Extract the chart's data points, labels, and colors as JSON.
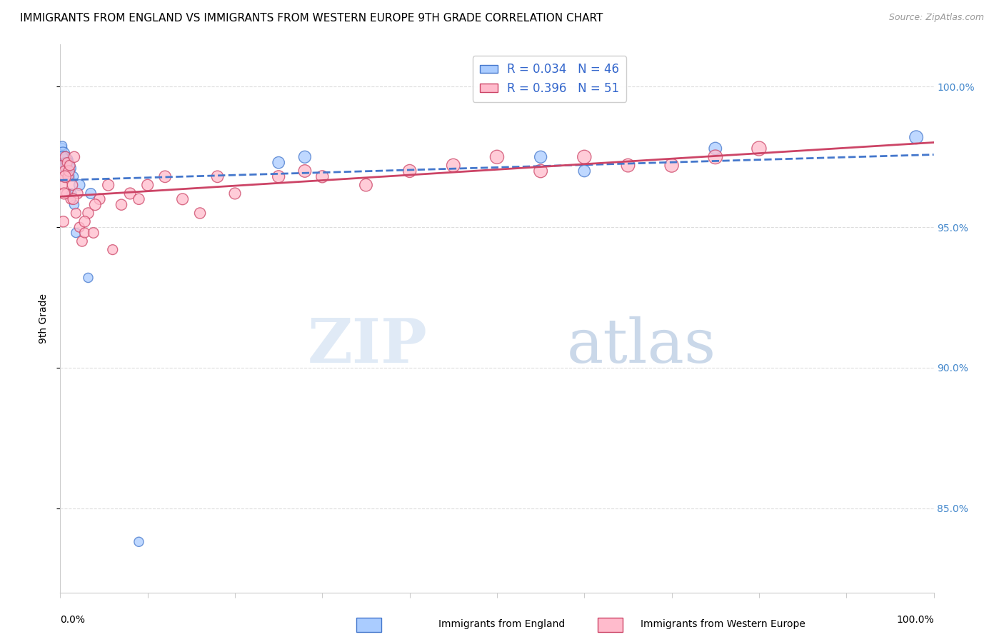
{
  "title": "IMMIGRANTS FROM ENGLAND VS IMMIGRANTS FROM WESTERN EUROPE 9TH GRADE CORRELATION CHART",
  "source": "Source: ZipAtlas.com",
  "ylabel": "9th Grade",
  "watermark_zip": "ZIP",
  "watermark_atlas": "atlas",
  "series1_label": "Immigrants from England",
  "series2_label": "Immigrants from Western Europe",
  "series1_R": 0.034,
  "series1_N": 46,
  "series2_R": 0.396,
  "series2_N": 51,
  "series1_color": "#aaccff",
  "series2_color": "#ffbbcc",
  "series1_edge_color": "#4477cc",
  "series2_edge_color": "#cc4466",
  "series1_line_color": "#4477cc",
  "series2_line_color": "#cc4466",
  "xmin": 0.0,
  "xmax": 100.0,
  "ymin": 82.0,
  "ymax": 101.5,
  "yticks": [
    85.0,
    90.0,
    95.0,
    100.0
  ],
  "ytick_labels": [
    "85.0%",
    "90.0%",
    "95.0%",
    "100.0%"
  ],
  "grid_color": "#dddddd",
  "background_color": "#ffffff",
  "title_fontsize": 11,
  "source_fontsize": 9,
  "series1_x": [
    0.15,
    0.2,
    0.25,
    0.3,
    0.32,
    0.35,
    0.38,
    0.4,
    0.42,
    0.45,
    0.48,
    0.5,
    0.52,
    0.55,
    0.58,
    0.6,
    0.65,
    0.7,
    0.75,
    0.8,
    0.85,
    0.9,
    0.95,
    1.0,
    1.1,
    1.2,
    1.3,
    1.5,
    1.6,
    1.8,
    2.2,
    3.2,
    3.5,
    9.0,
    25.0,
    28.0,
    55.0,
    60.0,
    75.0,
    98.0,
    0.22,
    0.28,
    0.33,
    0.62,
    0.68,
    0.72
  ],
  "series1_y": [
    97.8,
    97.5,
    97.9,
    97.6,
    97.3,
    97.1,
    97.4,
    97.0,
    97.2,
    97.3,
    97.5,
    97.4,
    97.2,
    97.0,
    97.1,
    97.3,
    97.0,
    96.9,
    97.2,
    97.4,
    97.1,
    97.3,
    97.0,
    97.2,
    96.8,
    97.1,
    96.2,
    96.8,
    95.8,
    94.8,
    96.5,
    93.2,
    96.2,
    83.8,
    97.3,
    97.5,
    97.5,
    97.0,
    97.8,
    98.2,
    97.5,
    97.2,
    97.0,
    97.3,
    97.1,
    97.2
  ],
  "series1_sizes": [
    120,
    90,
    80,
    200,
    160,
    140,
    120,
    110,
    100,
    120,
    130,
    140,
    120,
    110,
    100,
    120,
    100,
    90,
    110,
    130,
    100,
    120,
    110,
    120,
    90,
    110,
    90,
    100,
    90,
    90,
    120,
    90,
    110,
    90,
    140,
    150,
    150,
    140,
    160,
    180,
    130,
    110,
    100,
    110,
    100,
    110
  ],
  "series2_x": [
    0.2,
    0.3,
    0.4,
    0.5,
    0.6,
    0.7,
    0.8,
    0.9,
    1.0,
    1.1,
    1.2,
    1.4,
    1.6,
    1.8,
    2.0,
    2.2,
    2.5,
    2.8,
    3.2,
    3.8,
    4.5,
    5.5,
    6.0,
    7.0,
    8.0,
    9.0,
    10.0,
    12.0,
    14.0,
    16.0,
    18.0,
    20.0,
    25.0,
    28.0,
    30.0,
    35.0,
    40.0,
    45.0,
    50.0,
    55.0,
    60.0,
    65.0,
    70.0,
    75.0,
    80.0,
    0.35,
    0.45,
    0.55,
    1.5,
    2.8,
    4.0
  ],
  "series2_y": [
    97.2,
    96.5,
    96.8,
    97.0,
    97.5,
    96.2,
    97.3,
    96.8,
    97.0,
    97.2,
    96.0,
    96.5,
    97.5,
    95.5,
    96.2,
    95.0,
    94.5,
    94.8,
    95.5,
    94.8,
    96.0,
    96.5,
    94.2,
    95.8,
    96.2,
    96.0,
    96.5,
    96.8,
    96.0,
    95.5,
    96.8,
    96.2,
    96.8,
    97.0,
    96.8,
    96.5,
    97.0,
    97.2,
    97.5,
    97.0,
    97.5,
    97.2,
    97.2,
    97.5,
    97.8,
    95.2,
    96.2,
    96.8,
    96.0,
    95.2,
    95.8
  ],
  "series2_sizes": [
    100,
    90,
    100,
    110,
    120,
    90,
    100,
    110,
    120,
    110,
    100,
    110,
    120,
    100,
    110,
    100,
    110,
    100,
    120,
    110,
    120,
    130,
    100,
    120,
    130,
    120,
    130,
    140,
    130,
    120,
    140,
    130,
    150,
    160,
    150,
    160,
    170,
    180,
    190,
    180,
    190,
    180,
    190,
    200,
    210,
    120,
    130,
    140,
    120,
    120,
    130
  ]
}
